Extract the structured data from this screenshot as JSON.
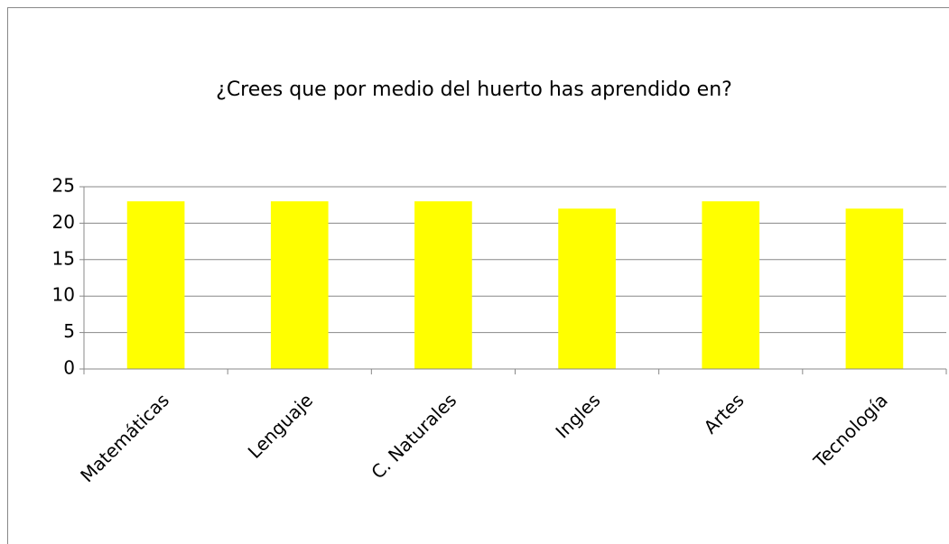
{
  "chart_data": {
    "type": "bar",
    "title": "¿Crees que por medio del huerto has aprendido en?",
    "categories": [
      "Matemáticas",
      "Lenguaje",
      "C. Naturales",
      "Ingles",
      "Artes",
      "Tecnología"
    ],
    "values": [
      23,
      23,
      23,
      22,
      23,
      22
    ],
    "color": "#ffff00",
    "ylim": [
      0,
      25
    ],
    "yticks": [
      0,
      5,
      10,
      15,
      20,
      25
    ],
    "grid": true
  }
}
